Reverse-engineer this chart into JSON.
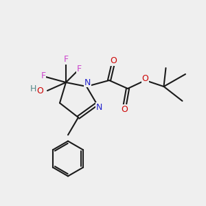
{
  "bg_color": "#efefef",
  "line_color": "#1a1a1a",
  "line_width": 1.5,
  "atom_colors": {
    "F": "#cc44cc",
    "O": "#cc0000",
    "N": "#2222cc",
    "H": "#558888",
    "C": "#1a1a1a"
  },
  "font_size": 9
}
